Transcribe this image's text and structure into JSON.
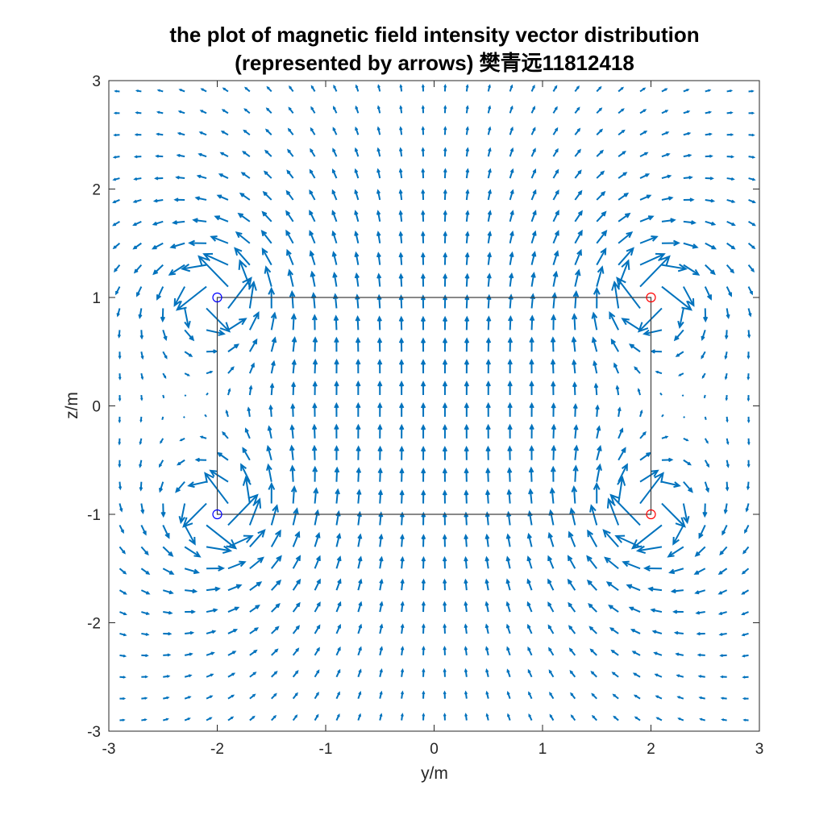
{
  "chart_data": {
    "type": "quiver",
    "title_lines": [
      "the plot of magnetic field intensity vector distribution",
      "(represented by arrows) 樊青远11812418"
    ],
    "xlabel": "y/m",
    "ylabel": "z/m",
    "xlim": [
      -3,
      3
    ],
    "ylim": [
      -3,
      3
    ],
    "xticks": [
      -3,
      -2,
      -1,
      0,
      1,
      2,
      3
    ],
    "yticks": [
      -3,
      -2,
      -1,
      0,
      1,
      2,
      3
    ],
    "grid": false,
    "arrow_color": "#0072BD",
    "arrow_grid": {
      "y_range": [
        -2.9,
        2.9
      ],
      "z_range": [
        -2.9,
        2.9
      ],
      "step": 0.2
    },
    "conductor_outline": {
      "color": "#404040",
      "corners": [
        [
          -2,
          1
        ],
        [
          2,
          1
        ],
        [
          2,
          -1
        ],
        [
          -2,
          -1
        ]
      ]
    },
    "sources": [
      {
        "y": -2,
        "z": 1,
        "color": "#0000ff",
        "direction": "positive"
      },
      {
        "y": -2,
        "z": -1,
        "color": "#0000ff",
        "direction": "positive"
      },
      {
        "y": 2,
        "z": 1,
        "color": "#ff0000",
        "direction": "negative"
      },
      {
        "y": 2,
        "z": -1,
        "color": "#ff0000",
        "direction": "negative"
      }
    ]
  }
}
